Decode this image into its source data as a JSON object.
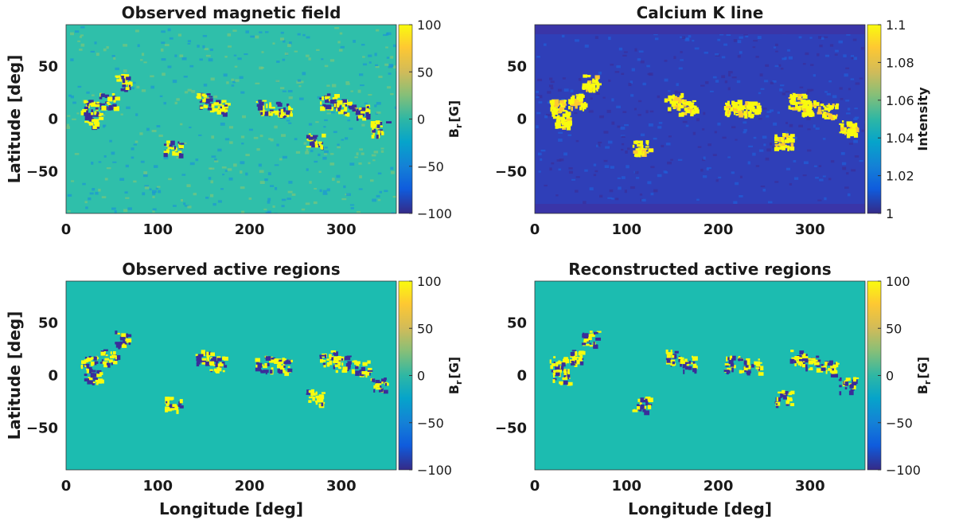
{
  "colors": {
    "parula_low": "#352a87",
    "parula_mid": "#1fb2b0",
    "parula_high": "#f9fb0e",
    "background_teal": "#1cbcb0",
    "text": "#1a1a1a"
  },
  "chart_data": [
    {
      "type": "heatmap",
      "title": "Observed magnetic field",
      "xlabel": "",
      "ylabel": "Latitude [deg]",
      "xlim": [
        0,
        360
      ],
      "ylim": [
        -90,
        90
      ],
      "xticks": [
        "0",
        "100",
        "200",
        "300"
      ],
      "yticks": [
        "50",
        "0",
        "-50"
      ],
      "colorbar": {
        "label_main": "B",
        "label_sub": "r",
        "label_unit": "[G]",
        "range": [
          -100,
          100
        ],
        "ticks": [
          "100",
          "50",
          "0",
          "-50",
          "-100"
        ]
      }
    },
    {
      "type": "heatmap",
      "title": "Calcium K line",
      "xlabel": "",
      "ylabel": "",
      "xlim": [
        0,
        360
      ],
      "ylim": [
        -90,
        90
      ],
      "xticks": [
        "0",
        "100",
        "200",
        "300"
      ],
      "yticks": [
        "50",
        "0",
        "-50"
      ],
      "colorbar": {
        "label_main": "Intensity",
        "label_sub": "",
        "label_unit": "",
        "range": [
          1,
          1.1
        ],
        "ticks": [
          "1.1",
          "1.08",
          "1.06",
          "1.04",
          "1.02",
          "1"
        ]
      }
    },
    {
      "type": "heatmap",
      "title": "Observed active regions",
      "xlabel": "Longitude [deg]",
      "ylabel": "Latitude [deg]",
      "xlim": [
        0,
        360
      ],
      "ylim": [
        -90,
        90
      ],
      "xticks": [
        "0",
        "100",
        "200",
        "300"
      ],
      "yticks": [
        "50",
        "0",
        "-50"
      ],
      "colorbar": {
        "label_main": "B",
        "label_sub": "r",
        "label_unit": "[G]",
        "range": [
          -100,
          100
        ],
        "ticks": [
          "100",
          "50",
          "0",
          "-50",
          "-100"
        ]
      }
    },
    {
      "type": "heatmap",
      "title": "Reconstructed active regions",
      "xlabel": "Longitude [deg]",
      "ylabel": "",
      "xlim": [
        0,
        360
      ],
      "ylim": [
        -90,
        90
      ],
      "xticks": [
        "0",
        "100",
        "200",
        "300"
      ],
      "yticks": [
        "50",
        "0",
        "-50"
      ],
      "colorbar": {
        "label_main": "B",
        "label_sub": "r",
        "label_unit": "[G]",
        "range": [
          -100,
          100
        ],
        "ticks": [
          "100",
          "50",
          "0",
          "-50",
          "-100"
        ]
      }
    }
  ]
}
